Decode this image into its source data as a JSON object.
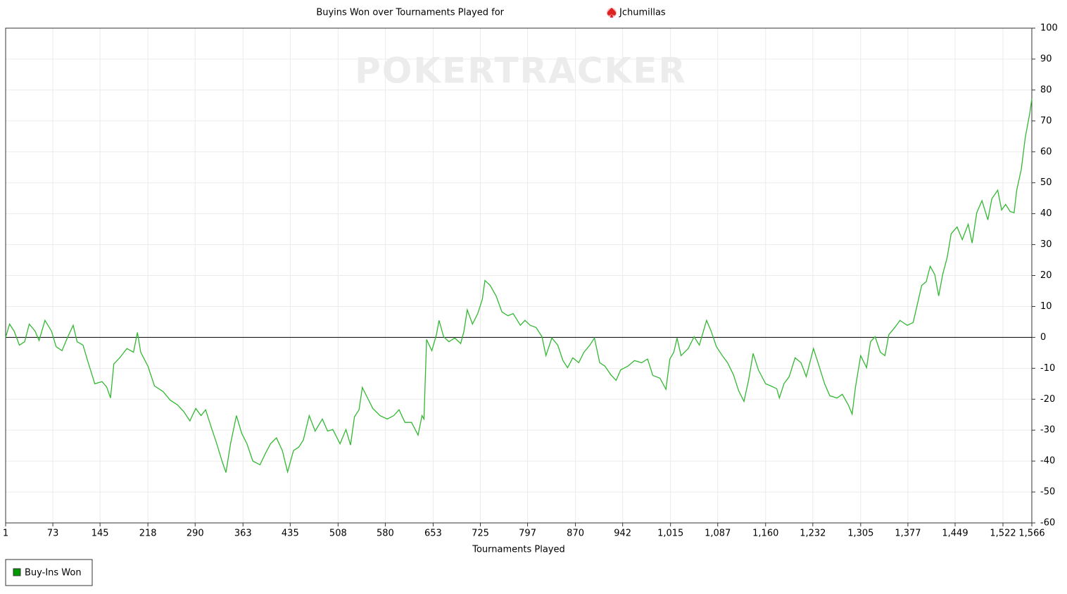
{
  "chart_data": {
    "type": "line",
    "title": "Buyins Won over Tournaments Played for",
    "player": "Jchumillas",
    "watermark": "POKERTRACKER",
    "x_label": "Tournaments Played",
    "xlim": [
      1,
      1566
    ],
    "ylim": [
      -60,
      100
    ],
    "xticks": [
      1,
      73,
      145,
      218,
      290,
      363,
      435,
      508,
      580,
      653,
      725,
      797,
      870,
      942,
      {
        "value": 1015,
        "label": "1,015"
      },
      {
        "value": 1087,
        "label": "1,087"
      },
      {
        "value": 1160,
        "label": "1,160"
      },
      {
        "value": 1232,
        "label": "1,232"
      },
      {
        "value": 1305,
        "label": "1,305"
      },
      {
        "value": 1377,
        "label": "1,377"
      },
      {
        "value": 1449,
        "label": "1,449"
      },
      {
        "value": 1522,
        "label": "1,522"
      },
      {
        "value": 1566,
        "label": "1,566"
      }
    ],
    "yticks": [
      -60,
      -50,
      -40,
      -30,
      -20,
      -10,
      0,
      10,
      20,
      30,
      40,
      50,
      60,
      70,
      80,
      90,
      100
    ],
    "grid": true,
    "x": [
      1,
      7,
      14,
      22,
      30,
      37,
      46,
      52,
      61,
      71,
      78,
      87,
      95,
      104,
      110,
      119,
      127,
      137,
      148,
      155,
      161,
      166,
      175,
      186,
      196,
      202,
      207,
      218,
      228,
      241,
      252,
      263,
      273,
      282,
      291,
      299,
      306,
      314,
      323,
      331,
      337,
      344,
      353,
      361,
      369,
      378,
      389,
      397,
      405,
      414,
      423,
      431,
      440,
      448,
      455,
      464,
      473,
      484,
      492,
      500,
      511,
      520,
      527,
      533,
      540,
      545,
      553,
      561,
      572,
      583,
      593,
      601,
      610,
      620,
      630,
      636,
      639,
      643,
      651,
      658,
      662,
      669,
      677,
      686,
      695,
      700,
      705,
      713,
      721,
      728,
      732,
      740,
      749,
      758,
      767,
      775,
      786,
      793,
      801,
      810,
      819,
      825,
      834,
      843,
      851,
      858,
      866,
      875,
      883,
      892,
      899,
      907,
      915,
      924,
      932,
      939,
      950,
      960,
      971,
      980,
      988,
      999,
      1008,
      1014,
      1020,
      1025,
      1031,
      1042,
      1051,
      1059,
      1070,
      1077,
      1085,
      1094,
      1102,
      1111,
      1119,
      1127,
      1134,
      1141,
      1149,
      1160,
      1168,
      1177,
      1181,
      1188,
      1196,
      1205,
      1214,
      1222,
      1233,
      1241,
      1250,
      1258,
      1269,
      1277,
      1286,
      1292,
      1297,
      1305,
      1314,
      1320,
      1327,
      1335,
      1342,
      1348,
      1357,
      1365,
      1376,
      1385,
      1392,
      1398,
      1405,
      1411,
      1418,
      1424,
      1430,
      1437,
      1443,
      1452,
      1460,
      1469,
      1475,
      1482,
      1490,
      1499,
      1505,
      1514,
      1520,
      1526,
      1533,
      1539,
      1543,
      1550,
      1556,
      1563,
      1566
    ],
    "series": [
      {
        "name": "Buy-Ins Won",
        "color": "#33b833",
        "legend_color": "#009900",
        "values": [
          0,
          4.3,
          2,
          -2.5,
          -1.4,
          4.3,
          2,
          -1,
          5.5,
          2,
          -3,
          -4.3,
          -0.2,
          3.9,
          -1.4,
          -2.5,
          -8.2,
          -15,
          -14.3,
          -16,
          -19.6,
          -8.6,
          -6.6,
          -3.6,
          -4.8,
          1.6,
          -4.8,
          -9.3,
          -15.7,
          -17.5,
          -20.3,
          -21.8,
          -24.1,
          -27,
          -23,
          -25.3,
          -23.4,
          -28.7,
          -34.4,
          -40,
          -43.7,
          -34.4,
          -25.3,
          -31,
          -34.4,
          -40,
          -41.2,
          -37.6,
          -34.4,
          -32.5,
          -36.6,
          -43.5,
          -36.6,
          -35.5,
          -33.2,
          -25.3,
          -30.3,
          -26.4,
          -30.3,
          -29.8,
          -34.4,
          -29.8,
          -34.8,
          -25.7,
          -23.4,
          -16.2,
          -19.6,
          -23,
          -25.3,
          -26.4,
          -25.3,
          -23.4,
          -27.5,
          -27.5,
          -31.6,
          -25.3,
          -26.4,
          -0.7,
          -4.3,
          0.9,
          5.5,
          0.2,
          -1.4,
          -0.2,
          -2,
          2,
          8.9,
          4.3,
          7.7,
          12.3,
          18.4,
          16.8,
          13.4,
          8.2,
          7,
          7.7,
          3.9,
          5.5,
          3.9,
          3.2,
          0.2,
          -5.9,
          -0.2,
          -2.5,
          -7.5,
          -9.8,
          -6.6,
          -8.2,
          -4.8,
          -2.5,
          -0.2,
          -8.2,
          -9.3,
          -12.1,
          -13.9,
          -10.5,
          -9.3,
          -7.5,
          -8.2,
          -7,
          -12.3,
          -13.2,
          -16.8,
          -7,
          -4.8,
          -0.2,
          -5.9,
          -3.6,
          0.2,
          -2.5,
          5.5,
          2,
          -3,
          -5.9,
          -8.2,
          -12.1,
          -17.3,
          -20.7,
          -13.9,
          -5.2,
          -10.5,
          -15,
          -15.7,
          -16.6,
          -19.6,
          -15,
          -12.7,
          -6.6,
          -8.2,
          -12.7,
          -3.6,
          -8.9,
          -15,
          -18.9,
          -19.6,
          -18.4,
          -21.8,
          -24.8,
          -16.2,
          -5.9,
          -9.8,
          -1.4,
          0.2,
          -4.8,
          -5.9,
          0.9,
          3.2,
          5.5,
          3.9,
          4.8,
          11.2,
          16.8,
          18,
          23,
          20.3,
          13.4,
          20.3,
          25.9,
          33.5,
          35.7,
          31.6,
          36.6,
          30.5,
          40.3,
          44.2,
          38,
          44.8,
          47.6,
          41.2,
          43,
          40.7,
          40.3,
          47.6,
          54.4,
          64.6,
          72.6,
          77.2
        ]
      }
    ]
  }
}
